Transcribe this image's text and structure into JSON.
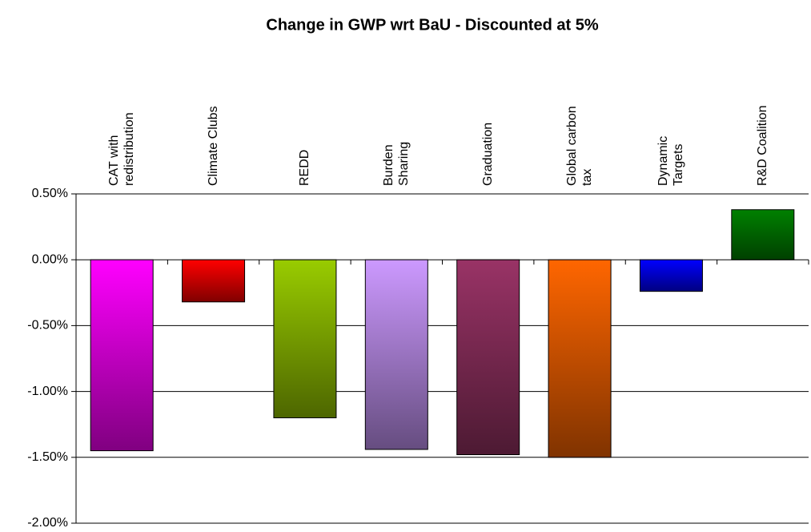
{
  "chart_data": {
    "type": "bar",
    "title": "Change in GWP wrt BaU - Discounted at 5%",
    "categories": [
      "CAT with\nredistribution",
      "Climate Clubs",
      "REDD",
      "Burden\nSharing",
      "Graduation",
      "Global carbon\ntax",
      "Dynamic\nTargets",
      "R&D Coalition"
    ],
    "values": [
      -1.45,
      -0.32,
      -1.2,
      -1.44,
      -1.48,
      -1.5,
      -0.24,
      0.38
    ],
    "colors": [
      "#ff00ff",
      "#ff0000",
      "#99cc00",
      "#cc99ff",
      "#993366",
      "#ff6600",
      "#0000ff",
      "#008000"
    ],
    "ylim": [
      -2,
      0.5
    ],
    "yticks": [
      {
        "value": 0.5,
        "label": "0.50%"
      },
      {
        "value": 0,
        "label": "0.00%"
      },
      {
        "value": -0.5,
        "label": "-0.50%"
      },
      {
        "value": -1,
        "label": "-1.00%"
      },
      {
        "value": -1.5,
        "label": "-1.50%"
      },
      {
        "value": -2,
        "label": "-2.00%"
      }
    ],
    "grid": true
  }
}
